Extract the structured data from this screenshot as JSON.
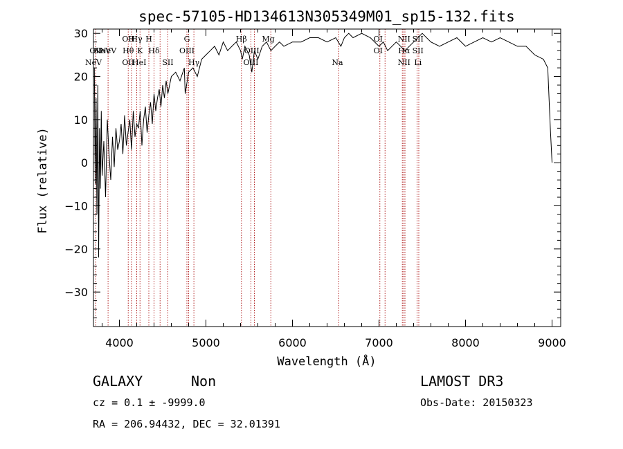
{
  "chart_data": {
    "type": "line",
    "title": "spec-57105-HD134613N305349M01_sp15-132.fits",
    "xlabel": "Wavelength (Å)",
    "ylabel": "Flux (relative)",
    "xlim": [
      3700,
      9100
    ],
    "ylim": [
      -38,
      31
    ],
    "xticks": [
      4000,
      5000,
      6000,
      7000,
      8000,
      9000
    ],
    "yticks": [
      -30,
      -20,
      -10,
      0,
      10,
      20,
      30
    ],
    "series": [
      {
        "name": "spectrum",
        "x": [
          3710,
          3720,
          3730,
          3740,
          3750,
          3760,
          3770,
          3780,
          3790,
          3800,
          3820,
          3840,
          3860,
          3880,
          3900,
          3920,
          3940,
          3960,
          3980,
          4000,
          4020,
          4040,
          4060,
          4080,
          4100,
          4120,
          4140,
          4160,
          4180,
          4200,
          4220,
          4240,
          4260,
          4280,
          4300,
          4320,
          4340,
          4360,
          4380,
          4400,
          4420,
          4440,
          4460,
          4480,
          4500,
          4520,
          4540,
          4560,
          4580,
          4600,
          4650,
          4700,
          4750,
          4760,
          4800,
          4850,
          4900,
          4950,
          5000,
          5050,
          5100,
          5150,
          5200,
          5250,
          5300,
          5350,
          5400,
          5420,
          5450,
          5500,
          5530,
          5560,
          5600,
          5650,
          5700,
          5750,
          5800,
          5850,
          5900,
          6000,
          6100,
          6200,
          6300,
          6400,
          6500,
          6560,
          6600,
          6650,
          6700,
          6800,
          6900,
          7000,
          7050,
          7100,
          7200,
          7300,
          7400,
          7500,
          7600,
          7700,
          7800,
          7900,
          8000,
          8100,
          8200,
          8300,
          8400,
          8500,
          8600,
          8700,
          8800,
          8900,
          8950,
          8980,
          9000
        ],
        "values": [
          22,
          -5,
          15,
          -12,
          18,
          -22,
          8,
          -6,
          12,
          -3,
          5,
          -8,
          10,
          2,
          -4,
          6,
          -1,
          8,
          3,
          5,
          9,
          2,
          11,
          4,
          7,
          10,
          3,
          12,
          6,
          9,
          8,
          12,
          4,
          10,
          13,
          7,
          11,
          14,
          9,
          16,
          12,
          15,
          17,
          13,
          18,
          15,
          19,
          16,
          18,
          20,
          21,
          19,
          22,
          16,
          21,
          22,
          20,
          24,
          25,
          26,
          27,
          25,
          28,
          26,
          27,
          28,
          26,
          24,
          27,
          25,
          21,
          26,
          24,
          27,
          28,
          26,
          27,
          28,
          27,
          28,
          28,
          29,
          29,
          28,
          29,
          27,
          29,
          30,
          29,
          30,
          29,
          27,
          28,
          26,
          28,
          26,
          28,
          30,
          28,
          27,
          28,
          29,
          27,
          28,
          29,
          28,
          29,
          28,
          27,
          27,
          25,
          24,
          22,
          8,
          0
        ]
      }
    ],
    "lines": [
      {
        "x": 3726,
        "label": "OII",
        "row": 3
      },
      {
        "x": 3869,
        "label": "NeV",
        "row": 2
      },
      {
        "x": 3426,
        "label": "NeV",
        "row": 3
      },
      {
        "x": 4102,
        "label": "OII",
        "row": 1
      },
      {
        "x": 4102,
        "label": "Hθ",
        "row": 2
      },
      {
        "x": 4102,
        "label": "OII",
        "row": 4
      },
      {
        "x": 4140,
        "label": "H",
        "row": 1
      },
      {
        "x": 4200,
        "label": "Hγ",
        "row": 1
      },
      {
        "x": 4238,
        "label": "K",
        "row": 2
      },
      {
        "x": 4340,
        "label": "H",
        "row": 1
      },
      {
        "x": 4400,
        "label": "Hδ",
        "row": 2
      },
      {
        "x": 4230,
        "label": "HeI",
        "row": 4
      },
      {
        "x": 4560,
        "label": "SII",
        "row": 4
      },
      {
        "x": 4780,
        "label": "G",
        "row": 1
      },
      {
        "x": 4780,
        "label": "OIII",
        "row": 2
      },
      {
        "x": 4861,
        "label": "Hγ",
        "row": 4
      },
      {
        "x": 5410,
        "label": "Hβ",
        "row": 1
      },
      {
        "x": 5530,
        "label": "OIII",
        "row": 2
      },
      {
        "x": 5520,
        "label": "OIII",
        "row": 4
      },
      {
        "x": 5720,
        "label": "Mg",
        "row": 1
      },
      {
        "x": 6520,
        "label": "Na",
        "row": 4
      },
      {
        "x": 6990,
        "label": "OI",
        "row": 1
      },
      {
        "x": 6990,
        "label": "OI",
        "row": 2
      },
      {
        "x": 7290,
        "label": "NII",
        "row": 1
      },
      {
        "x": 7290,
        "label": "Hα",
        "row": 2
      },
      {
        "x": 7290,
        "label": "NII",
        "row": 4
      },
      {
        "x": 7450,
        "label": "SII",
        "row": 1
      },
      {
        "x": 7450,
        "label": "SII",
        "row": 2
      },
      {
        "x": 7450,
        "label": "Li",
        "row": 4
      }
    ],
    "line_positions": [
      3727,
      3869,
      4102,
      4140,
      4200,
      4238,
      4340,
      4400,
      4470,
      4560,
      4780,
      4800,
      4861,
      5410,
      5520,
      5560,
      5750,
      6535,
      7010,
      7070,
      7270,
      7285,
      7300,
      7440,
      7460
    ]
  },
  "info": {
    "classification": "GALAXY",
    "subclass": "Non",
    "survey": "LAMOST DR3",
    "redshift": "cz = 0.1 ± -9999.0",
    "obs_date": "Obs-Date: 20150323",
    "coords": "RA = 206.94432, DEC =  32.01391"
  }
}
